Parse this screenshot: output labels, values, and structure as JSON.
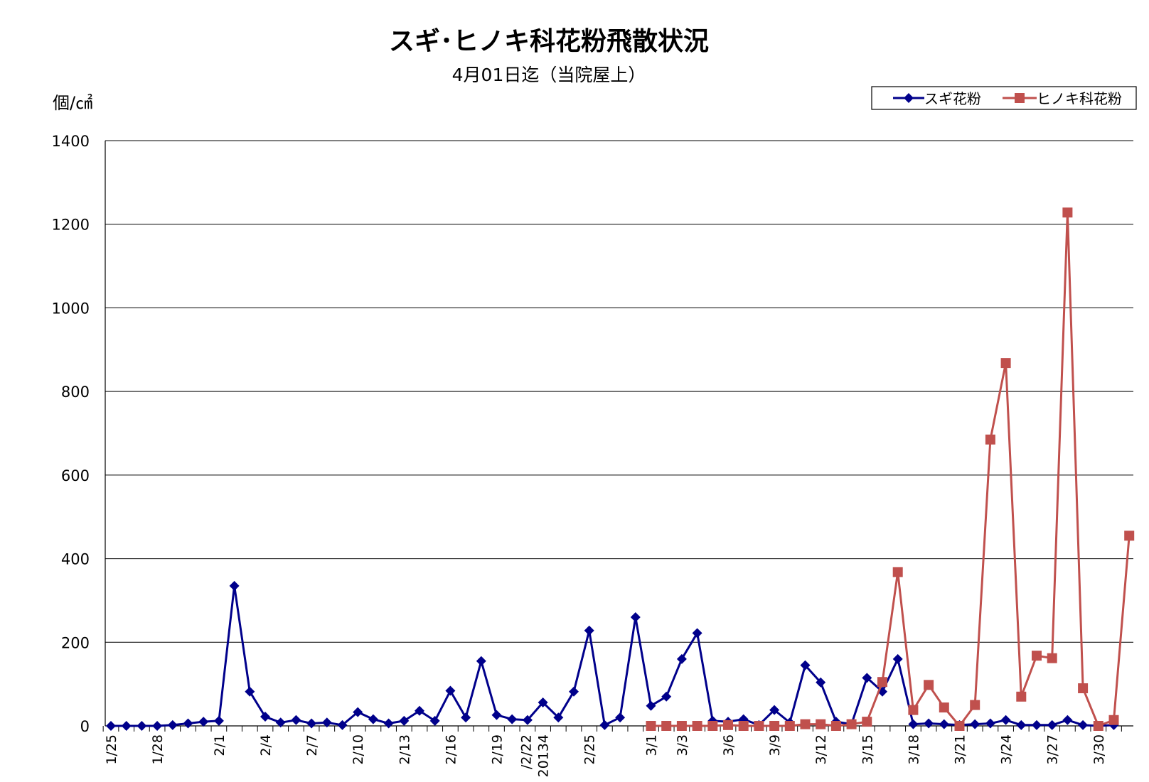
{
  "chart_data": {
    "type": "line",
    "title": "スギ･ヒノキ科花粉飛散状況",
    "subtitle": "4月01日迄（当院屋上）",
    "ylabel": "個/㎠",
    "ylim": [
      0,
      1400
    ],
    "yticks": [
      "0",
      "200",
      "400",
      "600",
      "800",
      "1000",
      "1200",
      "1400"
    ],
    "grid": true,
    "legend_position": "top-right",
    "x_labels": [
      {
        "index": 0,
        "text": "1/25"
      },
      {
        "index": 3,
        "text": "1/28"
      },
      {
        "index": 7,
        "text": "2/1"
      },
      {
        "index": 10,
        "text": "2/4"
      },
      {
        "index": 13,
        "text": "2/7"
      },
      {
        "index": 16,
        "text": "2/10"
      },
      {
        "index": 19,
        "text": "2/13"
      },
      {
        "index": 22,
        "text": "2/16"
      },
      {
        "index": 25,
        "text": "2/19"
      },
      {
        "index": 28,
        "text": "20134"
      },
      {
        "index": 28,
        "text": "/2/22"
      },
      {
        "index": 31,
        "text": "2/25"
      },
      {
        "index": 35,
        "text": "3/1"
      },
      {
        "index": 37,
        "text": "3/3"
      },
      {
        "index": 40,
        "text": "3/6"
      },
      {
        "index": 43,
        "text": "3/9"
      },
      {
        "index": 46,
        "text": "3/12"
      },
      {
        "index": 49,
        "text": "3/15"
      },
      {
        "index": 52,
        "text": "3/18"
      },
      {
        "index": 55,
        "text": "3/21"
      },
      {
        "index": 58,
        "text": "3/24"
      },
      {
        "index": 61,
        "text": "3/27"
      },
      {
        "index": 64,
        "text": "3/30"
      }
    ],
    "series": [
      {
        "name": "スギ花粉",
        "color": "#00008B",
        "marker": "diamond",
        "start_index": 0,
        "values": [
          0,
          0,
          0,
          0,
          2,
          6,
          10,
          12,
          335,
          82,
          22,
          8,
          14,
          6,
          8,
          2,
          33,
          16,
          6,
          12,
          36,
          12,
          84,
          20,
          155,
          26,
          16,
          14,
          56,
          20,
          82,
          228,
          2,
          20,
          260,
          48,
          70,
          160,
          222,
          12,
          10,
          16,
          2,
          38,
          8,
          145,
          104,
          10,
          4,
          115,
          82,
          160,
          4,
          6,
          4,
          2,
          4,
          6,
          14,
          2,
          2,
          2,
          14,
          2,
          0,
          2
        ]
      },
      {
        "name": "ヒノキ科花粉",
        "color": "#C0504D",
        "marker": "square",
        "start_index": 35,
        "values": [
          0,
          0,
          0,
          0,
          0,
          2,
          0,
          0,
          0,
          0,
          4,
          4,
          0,
          4,
          10,
          105,
          368,
          38,
          98,
          44,
          0,
          50,
          685,
          868,
          70,
          168,
          162,
          1228,
          90,
          0,
          14,
          455
        ]
      }
    ]
  }
}
